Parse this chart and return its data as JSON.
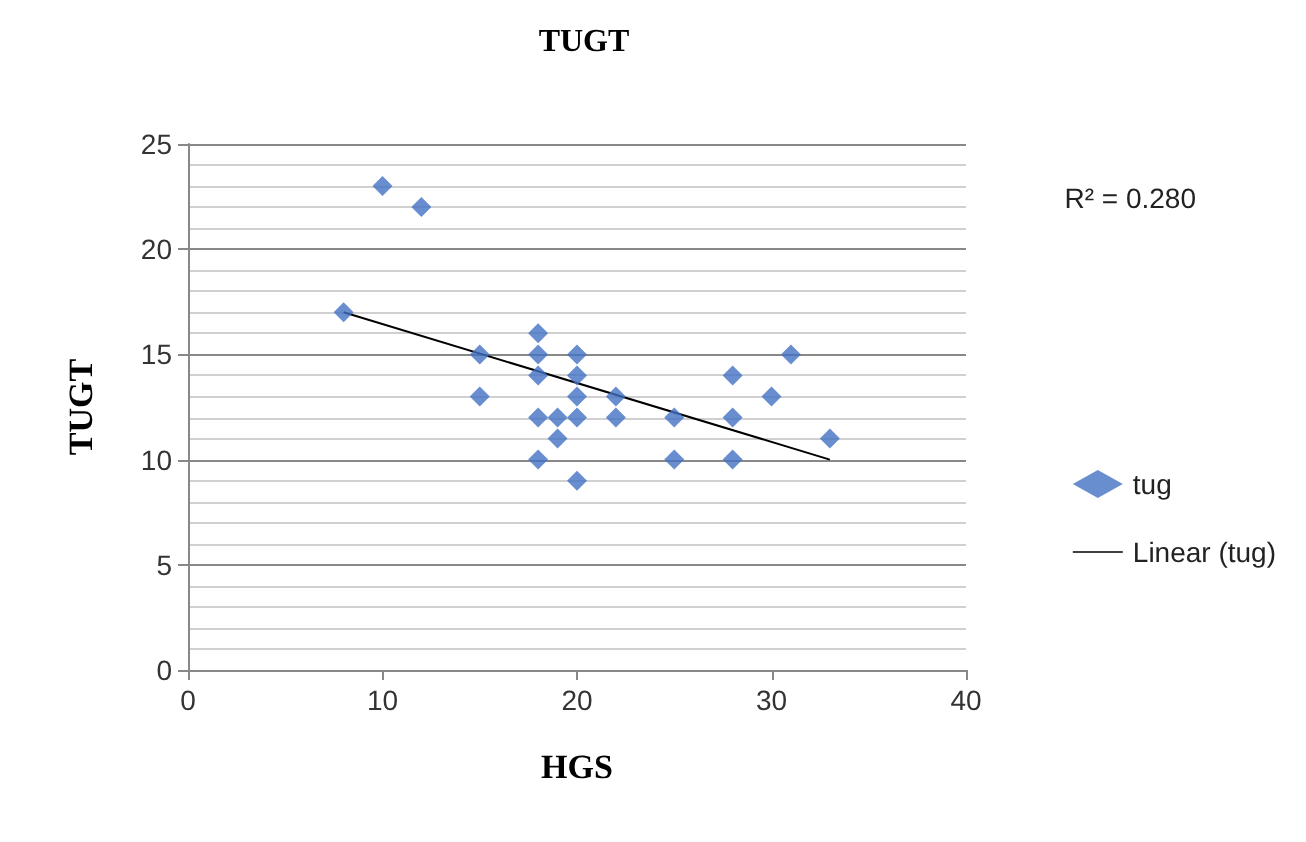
{
  "chart_data": {
    "type": "scatter",
    "title": "TUGT",
    "xlabel": "HGS",
    "ylabel": "TUGT",
    "x": [
      8,
      10,
      12,
      15,
      15,
      18,
      18,
      18,
      18,
      18,
      19,
      19,
      20,
      20,
      20,
      20,
      20,
      22,
      22,
      25,
      25,
      28,
      28,
      28,
      30,
      31,
      33
    ],
    "series": [
      {
        "name": "tug",
        "color": "#4472c4",
        "marker": "diamond",
        "values": [
          17,
          23,
          22,
          15,
          13,
          16,
          15,
          14,
          12,
          10,
          12,
          11,
          15,
          14,
          13,
          12,
          9,
          13,
          12,
          12,
          10,
          14,
          12,
          10,
          13,
          15,
          11
        ]
      },
      {
        "name": "Linear (tug)",
        "type": "line",
        "color": "#000000",
        "marker": "none",
        "x": [
          8,
          33
        ],
        "values": [
          17,
          10
        ]
      }
    ],
    "xlim": [
      0,
      40
    ],
    "xticks": [
      0,
      10,
      20,
      30,
      40
    ],
    "ylim": [
      0,
      25
    ],
    "yticks": [
      0,
      5,
      10,
      15,
      20,
      25
    ],
    "grid": "y",
    "legend": "right",
    "annotations": [
      "R² = 0.280"
    ]
  }
}
